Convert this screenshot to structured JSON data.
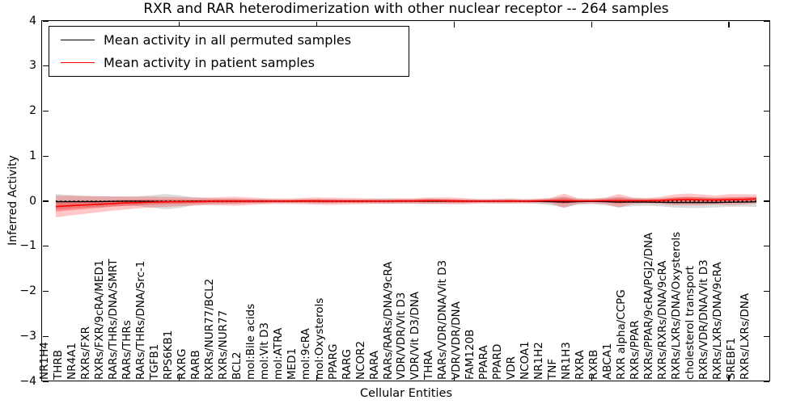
{
  "chart_data": {
    "type": "line",
    "title": "RXR and RAR heterodimerization with other nuclear receptor -- 264 samples",
    "xlabel": "Cellular Entities",
    "ylabel": "Inferred Activity",
    "ylim": [
      -4,
      4
    ],
    "xlim": [
      0,
      53
    ],
    "yticks": [
      -4,
      -3,
      -2,
      -1,
      0,
      1,
      2,
      3,
      4
    ],
    "xticks": [
      10,
      20,
      30,
      40,
      50
    ],
    "grid": false,
    "legend_position": "upper left",
    "zero_reference_line": {
      "y": 0,
      "style": "dotted",
      "color": "#000000"
    },
    "colors": {
      "permuted_line": "#000000",
      "patient_line": "#ff0000",
      "permuted_band": "#000000",
      "patient_band": "#ff0000"
    },
    "categories": [
      "NR1H4",
      "THRB",
      "NR4A1",
      "RXRs/FXR",
      "RXRs/FXR/9cRA/MED1",
      "RARs/THRs/DNA/SMRT",
      "RARs/THRs",
      "RARs/THRs/DNA/Src-1",
      "TGFB1",
      "RPS6KB1",
      "RXRG",
      "RARB",
      "RXRs/NUR77/BCL2",
      "RXRs/NUR77",
      "BCL2",
      "mol:Bile acids",
      "mol:Vit D3",
      "mol:ATRA",
      "MED1",
      "mol:9cRA",
      "mol:Oxysterols",
      "PPARG",
      "RARG",
      "NCOR2",
      "RARA",
      "RARs/RARs/DNA/9cRA",
      "VDR/VDR/Vit D3",
      "VDR/Vit D3/DNA",
      "THRA",
      "RARs/VDR/DNA/Vit D3",
      "VDR/VDR/DNA",
      "FAM120B",
      "PPARA",
      "PPARD",
      "VDR",
      "NCOA1",
      "NR1H2",
      "TNF",
      "NR1H3",
      "RXRA",
      "RXRB",
      "ABCA1",
      "RXR alpha/CCPG",
      "RXRs/PPAR",
      "RXRs/PPAR/9cRA/PGJ2/DNA",
      "RXRs/RXRs/DNA/9cRA",
      "RXRs/LXRs/DNA/Oxysterols",
      "cholesterol transport",
      "RXRs/VDR/DNA/Vit D3",
      "RXRs/LXRs/DNA/9cRA",
      "SREBF1",
      "RXRs/LXRs/DNA"
    ],
    "series": [
      {
        "name": "Mean activity in all permuted samples",
        "color": "#000000",
        "band_color": "#000000",
        "band_opacity": 0.14,
        "values": [
          -0.01,
          -0.01,
          -0.01,
          -0.01,
          -0.005,
          0,
          0,
          -0.005,
          -0.01,
          -0.01,
          0,
          0,
          0,
          0,
          0,
          0,
          0,
          0,
          0,
          0,
          0,
          0,
          0,
          0,
          0,
          0,
          0,
          0,
          0,
          0,
          0,
          0,
          0,
          0,
          0,
          -0.005,
          -0.01,
          -0.02,
          -0.01,
          -0.005,
          -0.01,
          -0.02,
          -0.02,
          -0.02,
          -0.025,
          -0.03,
          -0.03,
          -0.03,
          -0.03,
          -0.025,
          -0.02,
          -0.015
        ],
        "band_half_width": [
          0.17,
          0.15,
          0.13,
          0.12,
          0.11,
          0.1,
          0.11,
          0.14,
          0.17,
          0.14,
          0.09,
          0.07,
          0.06,
          0.06,
          0.05,
          0.05,
          0.04,
          0.04,
          0.04,
          0.05,
          0.05,
          0.04,
          0.04,
          0.05,
          0.06,
          0.05,
          0.05,
          0.06,
          0.05,
          0.05,
          0.04,
          0.04,
          0.05,
          0.05,
          0.04,
          0.05,
          0.08,
          0.12,
          0.07,
          0.06,
          0.08,
          0.12,
          0.09,
          0.08,
          0.09,
          0.11,
          0.12,
          0.12,
          0.11,
          0.1,
          0.1,
          0.11
        ]
      },
      {
        "name": "Mean activity in patient samples",
        "color": "#ff0000",
        "band_color": "#ff0000",
        "band_opacity": 0.22,
        "inner_band_opacity": 0.3,
        "values": [
          -0.12,
          -0.1,
          -0.085,
          -0.07,
          -0.055,
          -0.04,
          -0.03,
          -0.02,
          -0.015,
          -0.01,
          -0.01,
          -0.005,
          0,
          0,
          0,
          0,
          0,
          0,
          0.005,
          0.005,
          0,
          0,
          0,
          0,
          0,
          0.005,
          0.005,
          0.01,
          0.01,
          0.005,
          0,
          0,
          0,
          0.005,
          0,
          0.005,
          0.01,
          0.01,
          0.005,
          0.005,
          0.01,
          0.01,
          0.01,
          0.01,
          0.015,
          0.03,
          0.04,
          0.03,
          0.025,
          0.035,
          0.04,
          0.05
        ],
        "band_half_width": [
          0.24,
          0.22,
          0.2,
          0.18,
          0.16,
          0.145,
          0.13,
          0.12,
          0.11,
          0.1,
          0.09,
          0.085,
          0.09,
          0.1,
          0.085,
          0.07,
          0.06,
          0.06,
          0.07,
          0.08,
          0.08,
          0.075,
          0.07,
          0.06,
          0.055,
          0.06,
          0.06,
          0.07,
          0.075,
          0.075,
          0.065,
          0.05,
          0.05,
          0.055,
          0.05,
          0.05,
          0.06,
          0.16,
          0.06,
          0.05,
          0.07,
          0.15,
          0.07,
          0.06,
          0.08,
          0.12,
          0.13,
          0.12,
          0.1,
          0.12,
          0.115,
          0.1
        ],
        "inner_band_half_width": [
          0.11,
          0.1,
          0.09,
          0.08,
          0.07,
          0.065,
          0.06,
          0.055,
          0.05,
          0.045,
          0.04,
          0.038,
          0.04,
          0.045,
          0.038,
          0.032,
          0.027,
          0.027,
          0.032,
          0.036,
          0.036,
          0.034,
          0.032,
          0.027,
          0.025,
          0.027,
          0.027,
          0.032,
          0.034,
          0.034,
          0.03,
          0.023,
          0.023,
          0.025,
          0.023,
          0.023,
          0.027,
          0.07,
          0.027,
          0.023,
          0.032,
          0.065,
          0.032,
          0.027,
          0.036,
          0.054,
          0.058,
          0.054,
          0.045,
          0.054,
          0.052,
          0.045
        ]
      }
    ]
  }
}
